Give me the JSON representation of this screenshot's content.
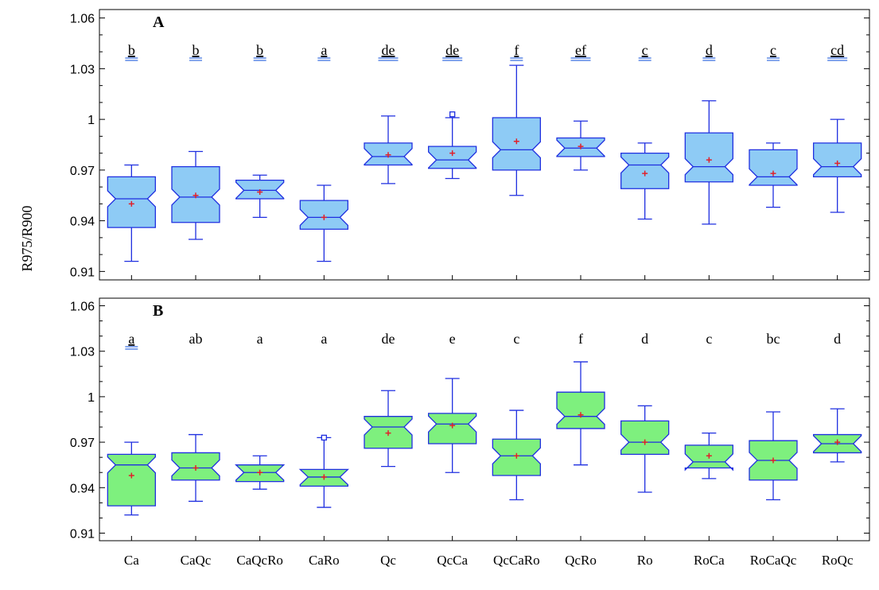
{
  "chart_data": {
    "type": "boxplot",
    "ylabel": "R975/R900",
    "categories": [
      "Ca",
      "CaQc",
      "CaQcRo",
      "CaRo",
      "Qc",
      "QcCa",
      "QcCaRo",
      "QcRo",
      "Ro",
      "RoCa",
      "RoCaQc",
      "RoQc"
    ],
    "ylim": [
      0.905,
      1.065
    ],
    "yticks": [
      0.91,
      0.94,
      0.97,
      1,
      1.03,
      1.06
    ],
    "ytick_labels": [
      "0.91",
      "0.94",
      "0.97",
      "1",
      "1.03",
      "1.06"
    ],
    "colors": {
      "box_a": "#8ecbf5",
      "box_b": "#7ef07e",
      "line": "#1f2fe0",
      "mean": "#e0202a",
      "double_ul": "#3a6fe0"
    },
    "panels": [
      {
        "label": "A",
        "letters": [
          "b",
          "b",
          "b",
          "a",
          "de",
          "de",
          "f",
          "ef",
          "c",
          "d",
          "c",
          "cd"
        ],
        "double_underlined": [
          true,
          true,
          true,
          true,
          true,
          true,
          true,
          true,
          true,
          true,
          true,
          true
        ],
        "boxes": [
          {
            "min": 0.916,
            "q1": 0.936,
            "median": 0.953,
            "q3": 0.966,
            "max": 0.973,
            "mean": 0.95,
            "outliers": []
          },
          {
            "min": 0.929,
            "q1": 0.939,
            "median": 0.954,
            "q3": 0.972,
            "max": 0.981,
            "mean": 0.955,
            "outliers": []
          },
          {
            "min": 0.942,
            "q1": 0.953,
            "median": 0.958,
            "q3": 0.964,
            "max": 0.967,
            "mean": 0.957,
            "outliers": []
          },
          {
            "min": 0.916,
            "q1": 0.935,
            "median": 0.942,
            "q3": 0.952,
            "max": 0.961,
            "mean": 0.942,
            "outliers": []
          },
          {
            "min": 0.962,
            "q1": 0.973,
            "median": 0.978,
            "q3": 0.986,
            "max": 1.002,
            "mean": 0.979,
            "outliers": []
          },
          {
            "min": 0.965,
            "q1": 0.971,
            "median": 0.976,
            "q3": 0.984,
            "max": 1.001,
            "mean": 0.98,
            "outliers": [
              1.003
            ]
          },
          {
            "min": 0.955,
            "q1": 0.97,
            "median": 0.982,
            "q3": 1.001,
            "max": 1.032,
            "mean": 0.987,
            "outliers": []
          },
          {
            "min": 0.97,
            "q1": 0.978,
            "median": 0.983,
            "q3": 0.989,
            "max": 0.999,
            "mean": 0.984,
            "outliers": []
          },
          {
            "min": 0.941,
            "q1": 0.959,
            "median": 0.973,
            "q3": 0.98,
            "max": 0.986,
            "mean": 0.968,
            "outliers": []
          },
          {
            "min": 0.938,
            "q1": 0.963,
            "median": 0.972,
            "q3": 0.992,
            "max": 1.011,
            "mean": 0.976,
            "outliers": []
          },
          {
            "min": 0.948,
            "q1": 0.961,
            "median": 0.966,
            "q3": 0.982,
            "max": 0.986,
            "mean": 0.968,
            "outliers": []
          },
          {
            "min": 0.945,
            "q1": 0.966,
            "median": 0.972,
            "q3": 0.986,
            "max": 1.0,
            "mean": 0.974,
            "outliers": []
          }
        ]
      },
      {
        "label": "B",
        "letters": [
          "a",
          "ab",
          "a",
          "a",
          "de",
          "e",
          "c",
          "f",
          "d",
          "c",
          "bc",
          "d"
        ],
        "double_underlined": [
          true,
          false,
          false,
          false,
          false,
          false,
          false,
          false,
          false,
          false,
          false,
          false
        ],
        "boxes": [
          {
            "min": 0.922,
            "q1": 0.928,
            "median": 0.955,
            "q3": 0.962,
            "max": 0.97,
            "mean": 0.948,
            "outliers": []
          },
          {
            "min": 0.931,
            "q1": 0.945,
            "median": 0.953,
            "q3": 0.963,
            "max": 0.975,
            "mean": 0.953,
            "outliers": []
          },
          {
            "min": 0.939,
            "q1": 0.944,
            "median": 0.95,
            "q3": 0.955,
            "max": 0.961,
            "mean": 0.95,
            "outliers": []
          },
          {
            "min": 0.927,
            "q1": 0.941,
            "median": 0.947,
            "q3": 0.952,
            "max": 0.973,
            "mean": 0.947,
            "outliers": [
              0.973
            ]
          },
          {
            "min": 0.954,
            "q1": 0.966,
            "median": 0.98,
            "q3": 0.987,
            "max": 1.004,
            "mean": 0.976,
            "outliers": []
          },
          {
            "min": 0.95,
            "q1": 0.969,
            "median": 0.982,
            "q3": 0.989,
            "max": 1.012,
            "mean": 0.981,
            "outliers": []
          },
          {
            "min": 0.932,
            "q1": 0.948,
            "median": 0.961,
            "q3": 0.972,
            "max": 0.991,
            "mean": 0.961,
            "outliers": []
          },
          {
            "min": 0.955,
            "q1": 0.979,
            "median": 0.987,
            "q3": 1.003,
            "max": 1.023,
            "mean": 0.988,
            "outliers": []
          },
          {
            "min": 0.937,
            "q1": 0.962,
            "median": 0.97,
            "q3": 0.984,
            "max": 0.994,
            "mean": 0.97,
            "outliers": []
          },
          {
            "min": 0.946,
            "q1": 0.953,
            "median": 0.957,
            "q3": 0.968,
            "max": 0.976,
            "mean": 0.961,
            "outliers": []
          },
          {
            "min": 0.932,
            "q1": 0.945,
            "median": 0.958,
            "q3": 0.971,
            "max": 0.99,
            "mean": 0.958,
            "outliers": []
          },
          {
            "min": 0.957,
            "q1": 0.963,
            "median": 0.969,
            "q3": 0.975,
            "max": 0.992,
            "mean": 0.97,
            "outliers": []
          }
        ]
      }
    ]
  }
}
